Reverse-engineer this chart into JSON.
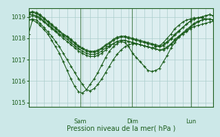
{
  "background_color": "#cce8e8",
  "plot_bg_color": "#ddeef0",
  "line_color": "#1a5c1a",
  "grid_color": "#aacccc",
  "tick_label_color": "#1a5c1a",
  "xlabel": "Pression niveau de la mer( hPa )",
  "xlabel_color": "#1a5c1a",
  "ylim": [
    1014.8,
    1019.4
  ],
  "yticks": [
    1015,
    1016,
    1017,
    1018,
    1019
  ],
  "day_labels": [
    "Sam",
    "Dim",
    "Lun"
  ],
  "day_positions": [
    0.28,
    0.56,
    0.88
  ],
  "series": [
    [
      1018.2,
      1018.85,
      1018.75,
      1018.6,
      1018.4,
      1018.2,
      1017.9,
      1017.6,
      1017.3,
      1016.9,
      1016.5,
      1016.1,
      1015.75,
      1015.5,
      1015.45,
      1015.6,
      1015.85,
      1016.1,
      1016.4,
      1016.75,
      1017.1,
      1017.4,
      1017.6,
      1017.75,
      1017.85,
      1017.8,
      1017.6,
      1017.3,
      1017.1,
      1016.9,
      1016.7,
      1016.5,
      1016.45,
      1016.5,
      1016.6,
      1016.9,
      1017.2,
      1017.55,
      1017.8,
      1018.05,
      1018.2,
      1018.3,
      1018.45,
      1018.55,
      1018.6,
      1018.65,
      1018.7,
      1018.75,
      1018.8
    ],
    [
      1018.85,
      1018.9,
      1018.85,
      1018.7,
      1018.5,
      1018.3,
      1018.1,
      1017.85,
      1017.6,
      1017.3,
      1017.0,
      1016.7,
      1016.4,
      1016.1,
      1015.85,
      1015.6,
      1015.55,
      1015.65,
      1015.85,
      1016.1,
      1016.4,
      1016.7,
      1017.0,
      1017.25,
      1017.45,
      1017.6,
      1017.7,
      1017.75,
      1017.75,
      1017.7,
      1017.65,
      1017.6,
      1017.55,
      1017.6,
      1017.65,
      1017.8,
      1018.0,
      1018.2,
      1018.45,
      1018.6,
      1018.75,
      1018.85,
      1018.9,
      1018.95,
      1018.95,
      1018.95,
      1018.9,
      1018.9,
      1018.85
    ],
    [
      1019.0,
      1019.05,
      1019.0,
      1018.9,
      1018.75,
      1018.6,
      1018.45,
      1018.3,
      1018.15,
      1018.0,
      1017.85,
      1017.7,
      1017.55,
      1017.4,
      1017.3,
      1017.2,
      1017.15,
      1017.15,
      1017.2,
      1017.3,
      1017.45,
      1017.6,
      1017.75,
      1017.85,
      1017.9,
      1017.9,
      1017.85,
      1017.8,
      1017.75,
      1017.7,
      1017.65,
      1017.6,
      1017.55,
      1017.5,
      1017.45,
      1017.45,
      1017.55,
      1017.7,
      1017.9,
      1018.05,
      1018.2,
      1018.35,
      1018.5,
      1018.65,
      1018.75,
      1018.85,
      1018.9,
      1018.9,
      1018.85
    ],
    [
      1019.1,
      1019.1,
      1019.05,
      1018.95,
      1018.8,
      1018.65,
      1018.5,
      1018.35,
      1018.2,
      1018.1,
      1017.95,
      1017.8,
      1017.65,
      1017.5,
      1017.4,
      1017.3,
      1017.25,
      1017.25,
      1017.3,
      1017.4,
      1017.55,
      1017.65,
      1017.75,
      1017.85,
      1017.9,
      1017.9,
      1017.85,
      1017.8,
      1017.75,
      1017.7,
      1017.65,
      1017.6,
      1017.55,
      1017.5,
      1017.45,
      1017.5,
      1017.6,
      1017.75,
      1017.95,
      1018.1,
      1018.25,
      1018.4,
      1018.55,
      1018.7,
      1018.8,
      1018.85,
      1018.9,
      1018.9,
      1018.85
    ],
    [
      1019.15,
      1019.2,
      1019.15,
      1019.05,
      1018.9,
      1018.75,
      1018.6,
      1018.45,
      1018.3,
      1018.15,
      1018.05,
      1017.9,
      1017.75,
      1017.6,
      1017.5,
      1017.4,
      1017.35,
      1017.35,
      1017.4,
      1017.5,
      1017.65,
      1017.75,
      1017.9,
      1018.0,
      1018.05,
      1018.05,
      1018.0,
      1017.95,
      1017.9,
      1017.85,
      1017.8,
      1017.75,
      1017.7,
      1017.65,
      1017.6,
      1017.65,
      1017.8,
      1017.95,
      1018.15,
      1018.3,
      1018.5,
      1018.65,
      1018.8,
      1018.9,
      1018.95,
      1019.0,
      1019.05,
      1019.1,
      1019.05
    ],
    [
      1019.2,
      1019.25,
      1019.2,
      1019.1,
      1018.95,
      1018.8,
      1018.65,
      1018.5,
      1018.35,
      1018.2,
      1018.1,
      1017.95,
      1017.8,
      1017.65,
      1017.55,
      1017.45,
      1017.4,
      1017.4,
      1017.45,
      1017.55,
      1017.7,
      1017.8,
      1017.95,
      1018.05,
      1018.1,
      1018.1,
      1018.05,
      1018.0,
      1017.95,
      1017.9,
      1017.85,
      1017.8,
      1017.75,
      1017.7,
      1017.65,
      1017.7,
      1017.85,
      1018.0,
      1018.2,
      1018.35,
      1018.5,
      1018.65,
      1018.8,
      1018.9,
      1018.95,
      1019.0,
      1019.05,
      1019.1,
      1019.05
    ]
  ]
}
